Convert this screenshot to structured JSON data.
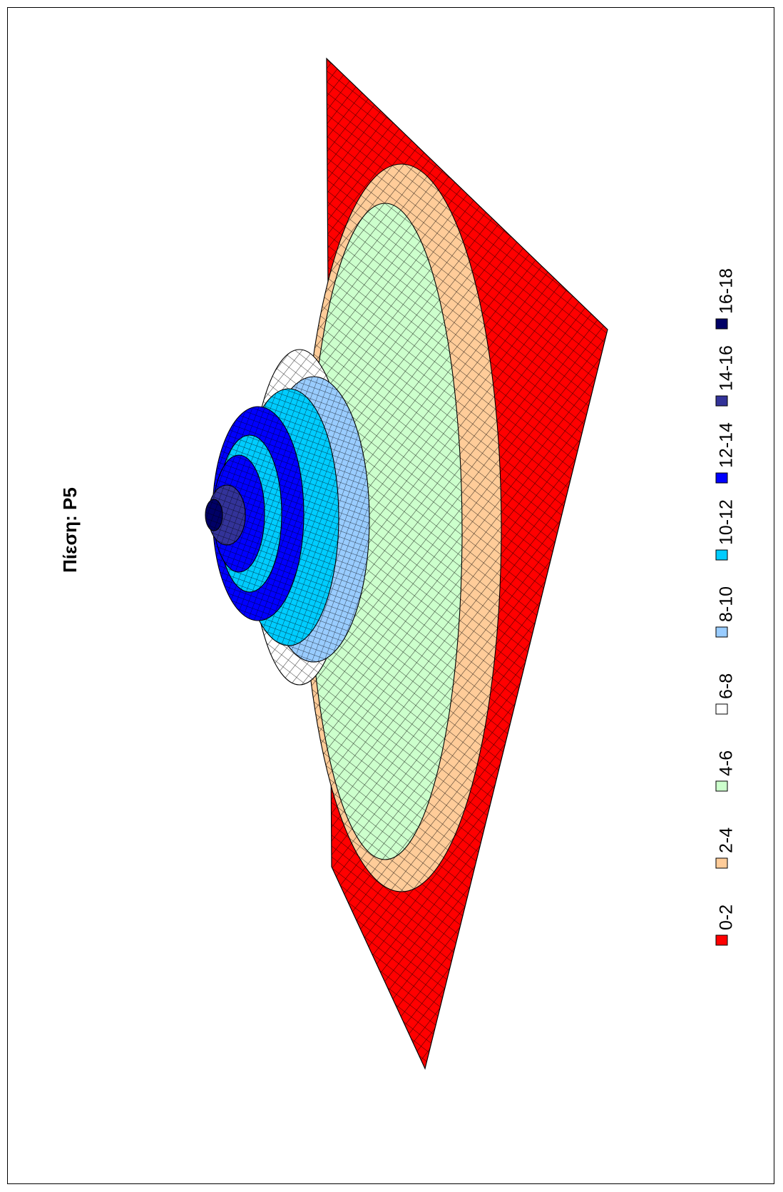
{
  "chart_data": {
    "type": "surface",
    "title": "Πίεση: P5",
    "legend_placement": "right",
    "bands": [
      {
        "label": "0-2",
        "range": [
          0,
          2
        ],
        "color": "#FF0000"
      },
      {
        "label": "2-4",
        "range": [
          2,
          4
        ],
        "color": "#FFCC99"
      },
      {
        "label": "4-6",
        "range": [
          4,
          6
        ],
        "color": "#CCFFCC"
      },
      {
        "label": "6-8",
        "range": [
          6,
          8
        ],
        "color": "#FFFFFF"
      },
      {
        "label": "8-10",
        "range": [
          8,
          10
        ],
        "color": "#99CCFF"
      },
      {
        "label": "10-12",
        "range": [
          10,
          12
        ],
        "color": "#00CCFF"
      },
      {
        "label": "12-14",
        "range": [
          12,
          14
        ],
        "color": "#0000FF"
      },
      {
        "label": "14-16",
        "range": [
          14,
          16
        ],
        "color": "#333399"
      },
      {
        "label": "16-18",
        "range": [
          16,
          18
        ],
        "color": "#000066"
      }
    ],
    "zlim": [
      0,
      18
    ]
  }
}
